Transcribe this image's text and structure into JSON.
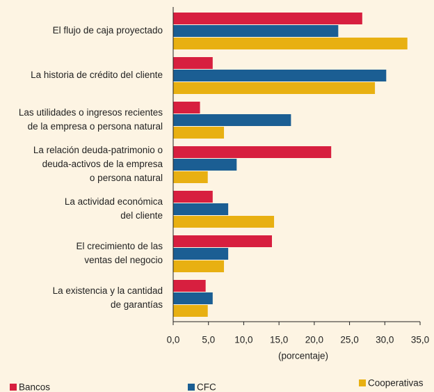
{
  "chart_data": {
    "type": "bar",
    "orientation": "horizontal",
    "categories": [
      [
        "El flujo de caja proyectado"
      ],
      [
        "La historia de crédito del cliente"
      ],
      [
        "Las utilidades o ingresos recientes",
        "de la empresa o persona natural"
      ],
      [
        "La relación deuda-patrimonio o",
        "deuda-activos de la empresa",
        "o persona natural"
      ],
      [
        "La actividad económica",
        "del cliente"
      ],
      [
        "El crecimiento de las",
        "ventas del negocio"
      ],
      [
        "La existencia y la cantidad",
        "de garantías"
      ]
    ],
    "series": [
      {
        "name": "Bancos",
        "color": "#d71f3f",
        "values": [
          26.8,
          5.6,
          3.8,
          22.4,
          5.6,
          14.0,
          4.6
        ]
      },
      {
        "name": "CFC",
        "color": "#1b5e93",
        "values": [
          23.4,
          30.2,
          16.7,
          9.0,
          7.8,
          7.8,
          5.6
        ]
      },
      {
        "name": "Cooperativas",
        "color": "#e8b012",
        "values": [
          33.2,
          28.6,
          7.2,
          4.9,
          14.3,
          7.2,
          4.9
        ]
      }
    ],
    "xlabel": "(porcentaje)",
    "xlim": [
      0,
      35
    ],
    "xticks": [
      {
        "value": 0,
        "label": "0,0"
      },
      {
        "value": 5,
        "label": "5,0"
      },
      {
        "value": 10,
        "label": "10,0"
      },
      {
        "value": 15,
        "label": "15,0"
      },
      {
        "value": 20,
        "label": "20,0"
      },
      {
        "value": 25,
        "label": "25,0"
      },
      {
        "value": 30,
        "label": "30,0"
      },
      {
        "value": 35,
        "label": "35,0"
      }
    ],
    "legend": "bottom"
  }
}
